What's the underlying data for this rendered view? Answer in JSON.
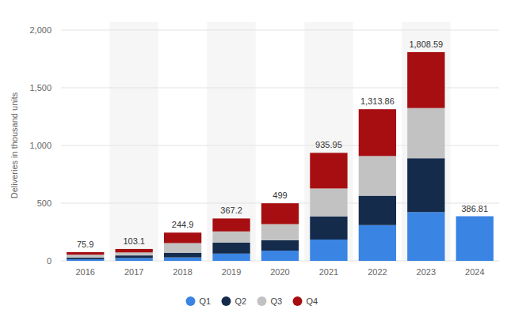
{
  "chart_data": {
    "type": "bar",
    "stacked": true,
    "grid": true,
    "legend": "bottom",
    "y_label": "Deliveries in thousand units",
    "categories": [
      "2016",
      "2017",
      "2018",
      "2019",
      "2020",
      "2021",
      "2022",
      "2023",
      "2024"
    ],
    "series": [
      {
        "name": "Q1",
        "color": "#3a84e3",
        "values": [
          14.82,
          25.0,
          29.98,
          63.0,
          88.4,
          184.8,
          310.05,
          422.88,
          386.81
        ]
      },
      {
        "name": "Q2",
        "color": "#142b4c",
        "values": [
          14.37,
          22.0,
          40.74,
          95.2,
          90.65,
          201.25,
          254.7,
          466.14,
          null
        ]
      },
      {
        "name": "Q3",
        "color": "#c2c2c2",
        "values": [
          24.5,
          26.15,
          83.5,
          97.0,
          139.3,
          241.3,
          343.83,
          435.06,
          null
        ]
      },
      {
        "name": "Q4",
        "color": "#a60e11",
        "values": [
          22.2,
          29.97,
          90.7,
          112.0,
          180.65,
          308.6,
          405.28,
          484.51,
          null
        ]
      }
    ],
    "totals": [
      75.9,
      103.1,
      244.9,
      367.2,
      499,
      935.95,
      1313.86,
      1808.59,
      386.81
    ],
    "total_labels": [
      "75.9",
      "103.1",
      "244.9",
      "367.2",
      "499",
      "935.95",
      "1,313.86",
      "1,808.59",
      "386.81"
    ],
    "ylim": [
      0,
      2000
    ],
    "yticks": [
      0,
      500,
      {
        "value": 1000,
        "label": "1,000"
      },
      {
        "value": 1500,
        "label": "1,500"
      },
      {
        "value": 2000,
        "label": "2,000"
      }
    ]
  }
}
